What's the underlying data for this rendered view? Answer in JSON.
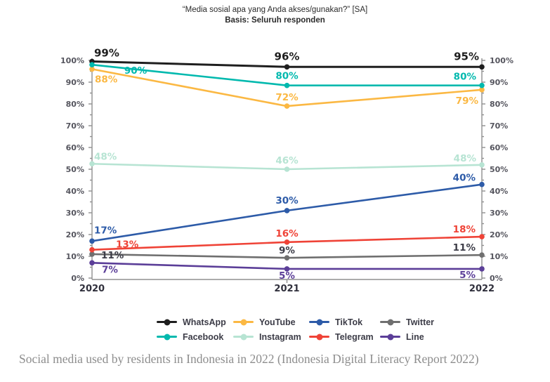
{
  "header": {
    "title": "“Media sosial apa yang Anda akses/gunakan?” [SA]",
    "subtitle": "Basis: Seluruh responden"
  },
  "caption": "Social media used by residents in Indonesia in 2022 (Indonesia Digital Literacy Report 2022)",
  "chart_data": {
    "type": "line",
    "title": "“Media sosial apa yang Anda akses/gunakan?” [SA]",
    "subtitle": "Basis: Seluruh responden",
    "x_categories": [
      "2020",
      "2021",
      "2022"
    ],
    "ylim": [
      0,
      100
    ],
    "y_tick_step": 10,
    "y_tick_labels": [
      "0%",
      "10%",
      "20%",
      "30%",
      "40%",
      "50%",
      "60%",
      "70%",
      "80%",
      "90%",
      "100%"
    ],
    "y_axis_sides": [
      "left",
      "right"
    ],
    "grid": false,
    "legend_position": "bottom",
    "legend_rows": [
      [
        "WhatsApp",
        "YouTube",
        "TikTok",
        "Twitter"
      ],
      [
        "Facebook",
        "Instagram",
        "Telegram",
        "Line"
      ]
    ],
    "series": [
      {
        "name": "WhatsApp",
        "color": "#1E1E1E",
        "values": [
          99,
          96,
          95
        ]
      },
      {
        "name": "Facebook",
        "color": "#00B9AE",
        "values": [
          90,
          80,
          80
        ]
      },
      {
        "name": "YouTube",
        "color": "#FBB843",
        "values": [
          88,
          72,
          79
        ]
      },
      {
        "name": "Instagram",
        "color": "#B7E4D3",
        "values": [
          48,
          46,
          48
        ]
      },
      {
        "name": "TikTok",
        "color": "#2D5BA8",
        "values": [
          17,
          30,
          40
        ]
      },
      {
        "name": "Telegram",
        "color": "#EF4337",
        "values": [
          13,
          16,
          18
        ]
      },
      {
        "name": "Twitter",
        "color": "#6F6F6F",
        "label_color": "#3D3D48",
        "values": [
          11,
          9,
          11
        ]
      },
      {
        "name": "Line",
        "color": "#5B3E98",
        "values": [
          7,
          5,
          5
        ]
      }
    ],
    "point_label_suffix": "%",
    "axis_color": "#8F8F8F",
    "tick_label_color": "#55555E",
    "x_label_color": "#30303C"
  }
}
